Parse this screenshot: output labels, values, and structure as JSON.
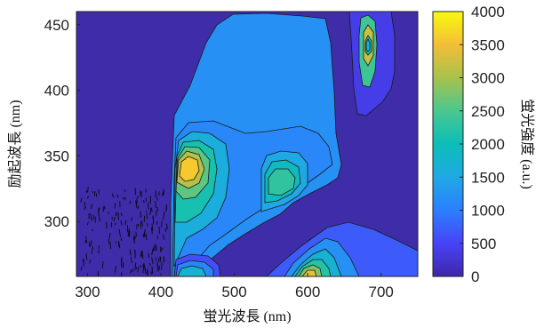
{
  "chart_data": {
    "type": "heatmap",
    "subtype": "excitation-emission-matrix contour",
    "xlabel": "蛍光波長 (nm)",
    "ylabel": "励起波長 (nm)",
    "colorbar_label": "蛍光強度 (a.u.)",
    "xlim": [
      285,
      750
    ],
    "ylim": [
      258,
      460
    ],
    "x_ticks": [
      {
        "value": 300,
        "label": "300"
      },
      {
        "value": 400,
        "label": "400"
      },
      {
        "value": 500,
        "label": "500"
      },
      {
        "value": 600,
        "label": "600"
      },
      {
        "value": 700,
        "label": "700"
      }
    ],
    "y_ticks": [
      {
        "value": 300,
        "label": "300"
      },
      {
        "value": 350,
        "label": "350"
      },
      {
        "value": 400,
        "label": "400"
      },
      {
        "value": 450,
        "label": "450"
      }
    ],
    "colorbar": {
      "range": [
        0,
        4000
      ],
      "ticks": [
        {
          "value": 0,
          "label": "0"
        },
        {
          "value": 500,
          "label": "500"
        },
        {
          "value": 1000,
          "label": "1000"
        },
        {
          "value": 1500,
          "label": "1500"
        },
        {
          "value": 2000,
          "label": "2000"
        },
        {
          "value": 2500,
          "label": "2500"
        },
        {
          "value": 3000,
          "label": "3000"
        },
        {
          "value": 3500,
          "label": "3500"
        },
        {
          "value": 4000,
          "label": "4000"
        }
      ],
      "colormap": [
        "#3e26a8",
        "#4743f8",
        "#2c7ffe",
        "#1fa9e4",
        "#0bbeb7",
        "#4ac790",
        "#a8c24b",
        "#f4bd37",
        "#f8fa0d"
      ]
    },
    "background_color": "#3e2ca8",
    "region_levels": [
      {
        "value": 1200
      },
      {
        "value": 400
      },
      {
        "value": 1100
      },
      {
        "value": 1600
      },
      {
        "value": 2100
      },
      {
        "value": 2600
      },
      {
        "value": 3100
      },
      {
        "value": 3600
      },
      {
        "value": 1500
      },
      {
        "value": 1900
      },
      {
        "value": 2300
      },
      {
        "value": 700
      },
      {
        "value": 1200
      },
      {
        "value": 1700
      },
      {
        "value": 2200
      },
      {
        "value": 2800
      },
      {
        "value": 3400
      },
      {
        "value": 600
      },
      {
        "value": 1100
      },
      {
        "value": 1700
      },
      {
        "value": 2400
      },
      {
        "value": 3200
      },
      {
        "value": 2000
      },
      {
        "value": 1600
      }
    ]
  }
}
